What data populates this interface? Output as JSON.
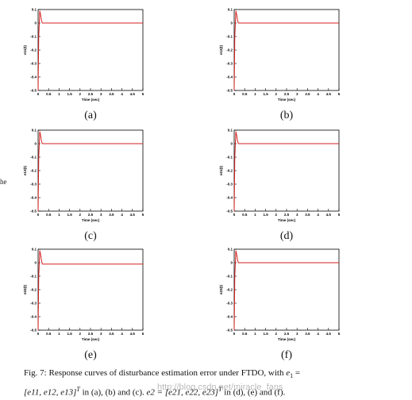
{
  "page_fragment": "he",
  "figure": {
    "caption_prefix": "Fig. 7: Response curves of disturbance estimation error under FTDO, with",
    "caption_e1": "e",
    "caption_e1_sub": "1",
    "caption_eq": "=",
    "caption_line2_vec1": "[e11, e12, e13]",
    "caption_T1": "T",
    "caption_mid": "in (a), (b) and (c).",
    "caption_e2": "e2 = [e21, e22, e23]",
    "caption_T2": "T",
    "caption_end": "in (d), (e) and (f)."
  },
  "watermark": "http://blog.csdn.net/miracle_fans",
  "colors": {
    "curve": "#d62020",
    "axis": "#000000"
  },
  "chart_data": [
    {
      "type": "line",
      "panel_label": "(a)",
      "xlabel": "Time (sec)",
      "ylabel": "e11(t)",
      "xlim": [
        0,
        5
      ],
      "ylim": [
        -0.5,
        0.1
      ],
      "xticks": [
        "0",
        "0.5",
        "1",
        "1.5",
        "2",
        "2.5",
        "3",
        "3.5",
        "4",
        "4.5",
        "5"
      ],
      "yticks": [
        "0.1",
        "0",
        "-0.1",
        "-0.2",
        "-0.3",
        "-0.4",
        "-0.5"
      ],
      "series": [
        {
          "x": [
            0,
            0.03,
            0.08,
            0.12,
            0.16,
            0.2,
            0.3,
            5
          ],
          "y": [
            -0.5,
            -0.1,
            0.09,
            0.06,
            0.02,
            0,
            0,
            0
          ]
        }
      ]
    },
    {
      "type": "line",
      "panel_label": "(b)",
      "xlabel": "Time (sec)",
      "ylabel": "e12(t)",
      "xlim": [
        0,
        5
      ],
      "ylim": [
        -0.5,
        0.1
      ],
      "xticks": [
        "0",
        "0.5",
        "1",
        "1.5",
        "2",
        "2.5",
        "3",
        "3.5",
        "4",
        "4.5",
        "5"
      ],
      "yticks": [
        "0.1",
        "0",
        "-0.1",
        "-0.2",
        "-0.3",
        "-0.4",
        "-0.5"
      ],
      "series": [
        {
          "x": [
            0,
            0.03,
            0.08,
            0.12,
            0.16,
            0.2,
            0.3,
            5
          ],
          "y": [
            -0.5,
            -0.1,
            0.09,
            0.06,
            0.02,
            0,
            0,
            0
          ]
        }
      ]
    },
    {
      "type": "line",
      "panel_label": "(c)",
      "xlabel": "Time (sec)",
      "ylabel": "e13(t)",
      "xlim": [
        0,
        5
      ],
      "ylim": [
        -0.5,
        0.1
      ],
      "xticks": [
        "0",
        "0.5",
        "1",
        "1.5",
        "2",
        "2.5",
        "3",
        "3.5",
        "4",
        "4.5",
        "5"
      ],
      "yticks": [
        "0.1",
        "0",
        "-0.1",
        "-0.2",
        "-0.3",
        "-0.4",
        "-0.5"
      ],
      "series": [
        {
          "x": [
            0,
            0.03,
            0.08,
            0.12,
            0.16,
            0.2,
            0.3,
            5
          ],
          "y": [
            -0.5,
            -0.1,
            0.09,
            0.06,
            0.02,
            0,
            0,
            0
          ]
        }
      ]
    },
    {
      "type": "line",
      "panel_label": "(d)",
      "xlabel": "Time (sec)",
      "ylabel": "e21(t)",
      "xlim": [
        0,
        5
      ],
      "ylim": [
        -0.5,
        0.1
      ],
      "xticks": [
        "0",
        "0.5",
        "1",
        "1.5",
        "2",
        "2.5",
        "3",
        "3.5",
        "4",
        "4.5",
        "5"
      ],
      "yticks": [
        "0.1",
        "0",
        "-0.1",
        "-0.2",
        "-0.3",
        "-0.4",
        "-0.5"
      ],
      "series": [
        {
          "x": [
            0,
            0.03,
            0.08,
            0.12,
            0.16,
            0.2,
            0.3,
            5
          ],
          "y": [
            -0.5,
            -0.1,
            0.09,
            0.06,
            0.02,
            0,
            0,
            0
          ]
        }
      ]
    },
    {
      "type": "line",
      "panel_label": "(e)",
      "xlabel": "Time (sec)",
      "ylabel": "e22(t)",
      "xlim": [
        0,
        5
      ],
      "ylim": [
        -0.5,
        0.1
      ],
      "xticks": [
        "0",
        "0.5",
        "1",
        "1.5",
        "2",
        "2.5",
        "3",
        "3.5",
        "4",
        "4.5",
        "5"
      ],
      "yticks": [
        "0.1",
        "0",
        "-0.1",
        "-0.2",
        "-0.3",
        "-0.4",
        "-0.5"
      ],
      "series": [
        {
          "x": [
            0,
            0.03,
            0.08,
            0.12,
            0.16,
            0.2,
            0.3,
            5
          ],
          "y": [
            -0.5,
            -0.1,
            0.09,
            0.06,
            0.02,
            -0.01,
            -0.01,
            -0.01
          ]
        }
      ]
    },
    {
      "type": "line",
      "panel_label": "(f)",
      "xlabel": "Time (sec)",
      "ylabel": "e23(t)",
      "xlim": [
        0,
        5
      ],
      "ylim": [
        -0.5,
        0.1
      ],
      "xticks": [
        "0",
        "0.5",
        "1",
        "1.5",
        "2",
        "2.5",
        "3",
        "3.5",
        "4",
        "4.5",
        "5"
      ],
      "yticks": [
        "0.1",
        "0",
        "-0.1",
        "-0.2",
        "-0.3",
        "-0.4",
        "-0.5"
      ],
      "series": [
        {
          "x": [
            0,
            0.03,
            0.08,
            0.12,
            0.16,
            0.2,
            0.3,
            5
          ],
          "y": [
            -0.5,
            -0.1,
            0.09,
            0.06,
            0.02,
            0,
            0,
            0
          ]
        }
      ]
    }
  ]
}
